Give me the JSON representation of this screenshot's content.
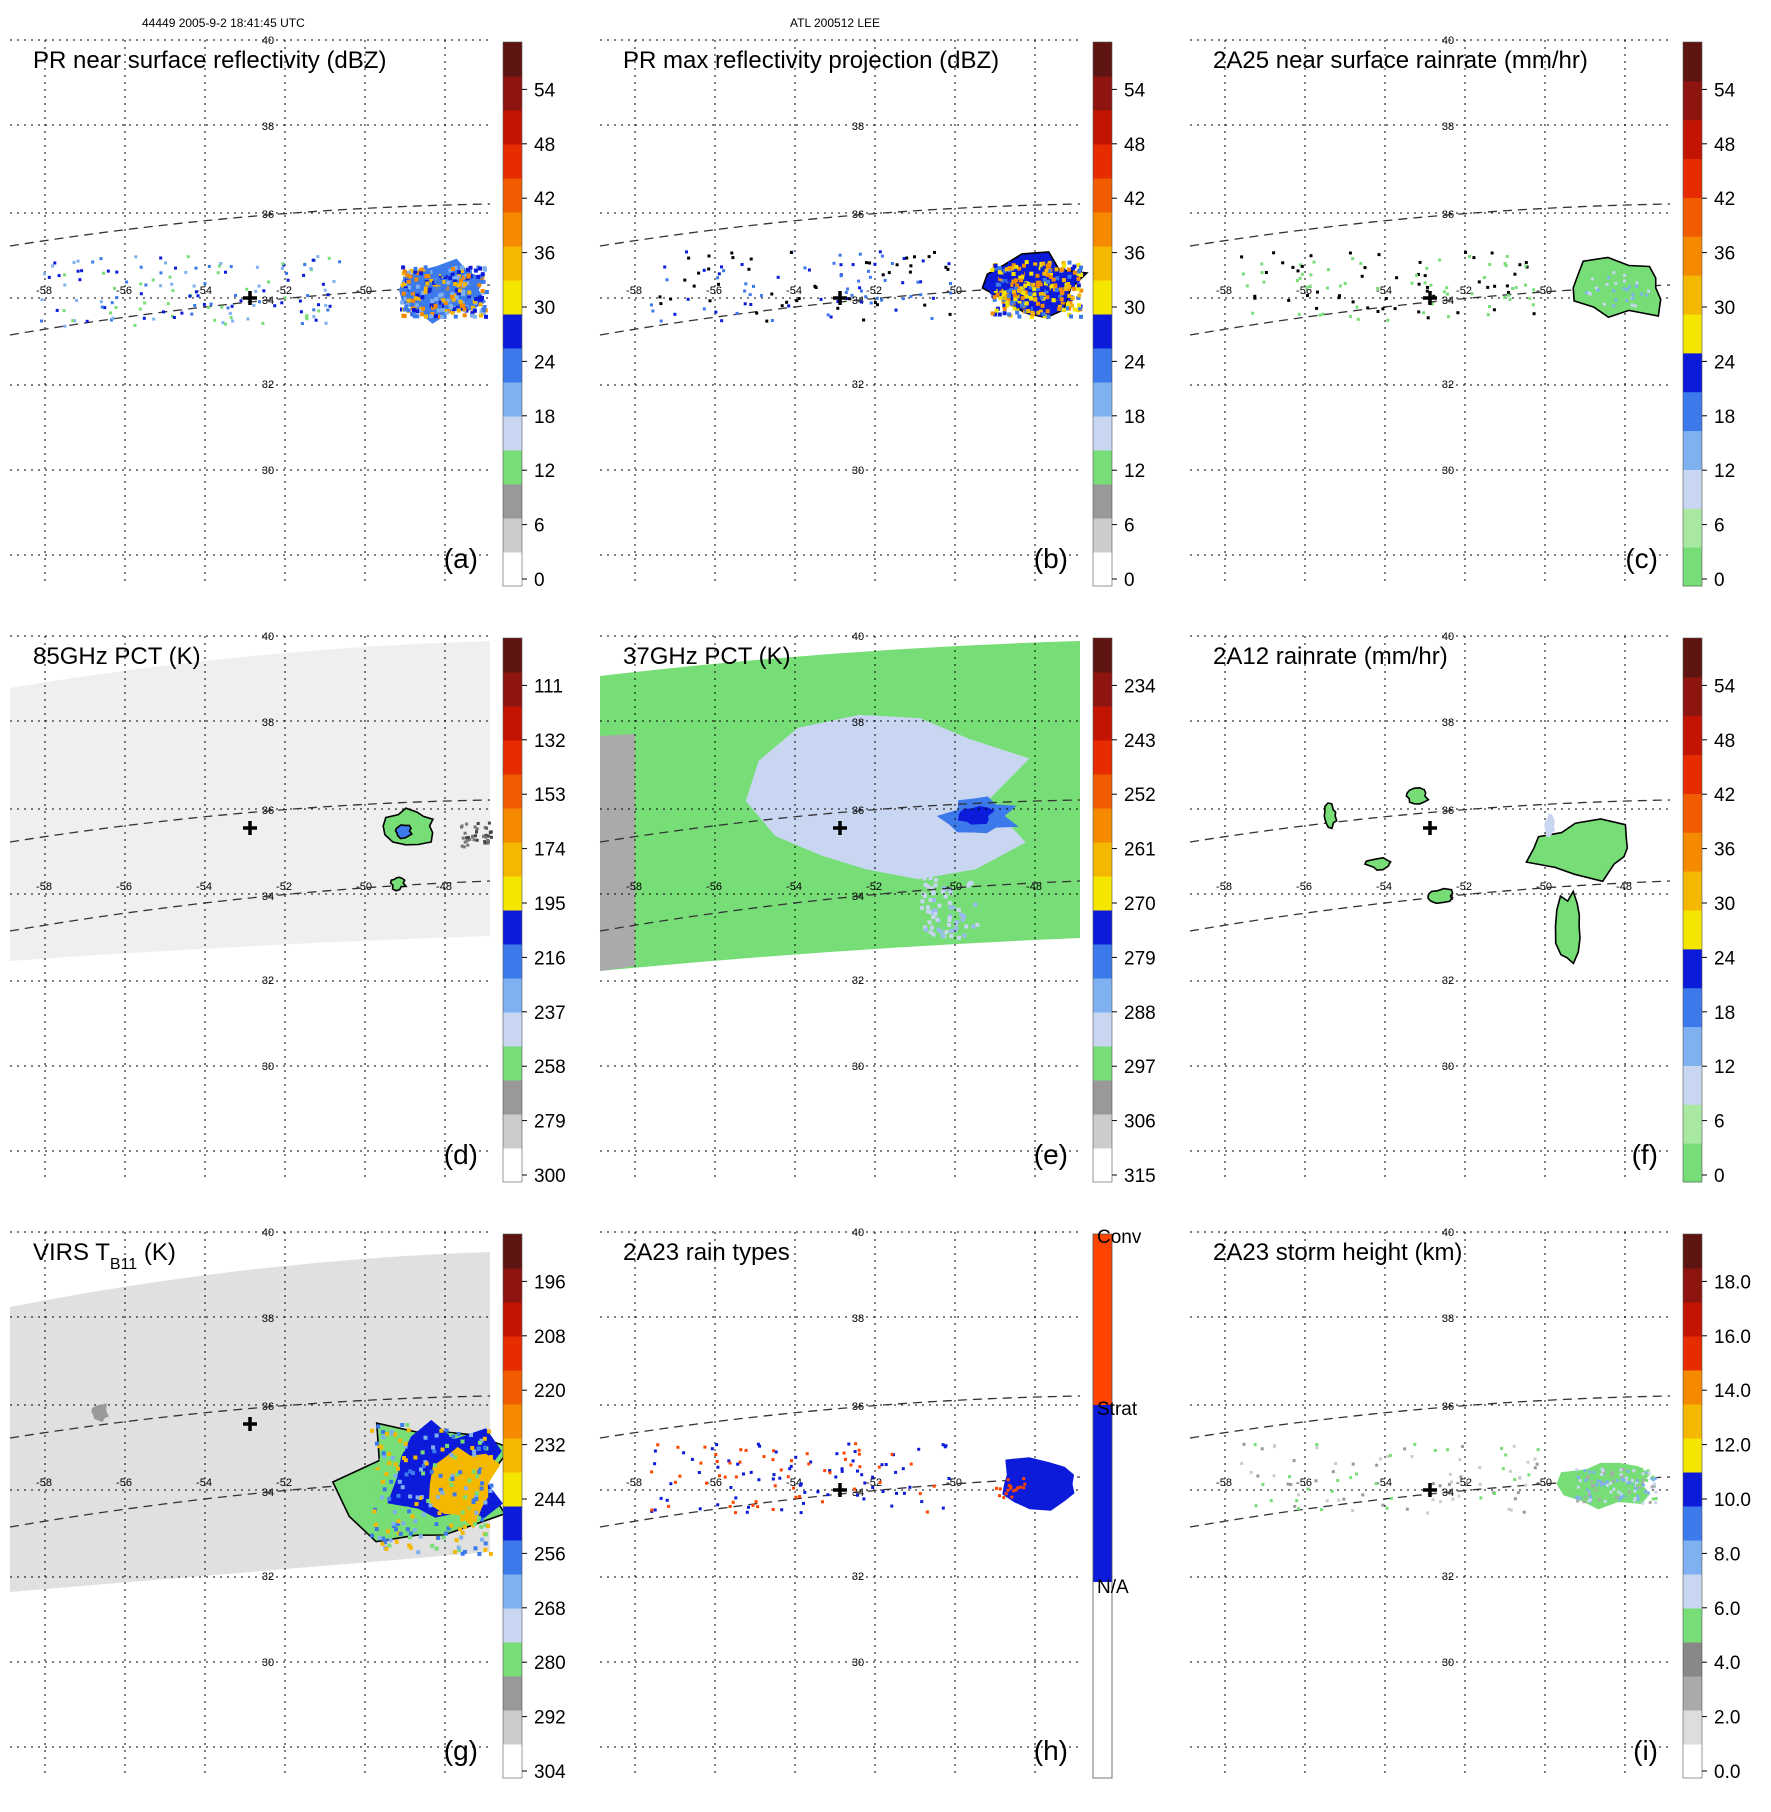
{
  "header": {
    "left": "44449 2005-9-2 18:41:45 UTC",
    "middle": "ATL 200512 LEE"
  },
  "chart_data": [
    {
      "type": "heatmap",
      "id": "a",
      "title": "PR near surface reflectivity (dBZ)",
      "panel_label": "(a)",
      "colorbar_ticks": [
        "54",
        "48",
        "42",
        "36",
        "30",
        "24",
        "18",
        "12",
        "6",
        "0"
      ],
      "lat_labels": [
        "40",
        "38",
        "36",
        "34",
        "32",
        "30"
      ],
      "lon_labels": [
        "-58",
        "-56",
        "-54",
        "-52",
        "-50",
        "-48"
      ]
    },
    {
      "type": "heatmap",
      "id": "b",
      "title": "PR max reflectivity projection (dBZ)",
      "panel_label": "(b)",
      "colorbar_ticks": [
        "54",
        "48",
        "42",
        "36",
        "30",
        "24",
        "18",
        "12",
        "6",
        "0"
      ],
      "lat_labels": [
        "38",
        "36",
        "34",
        "32",
        "30"
      ],
      "lon_labels": [
        "-58",
        "-56",
        "-54",
        "-52",
        "-50",
        "-48"
      ]
    },
    {
      "type": "heatmap",
      "id": "c",
      "title": "2A25 near surface rainrate (mm/hr)",
      "panel_label": "(c)",
      "colorbar_ticks": [
        "54",
        "48",
        "42",
        "36",
        "30",
        "24",
        "18",
        "12",
        "6",
        "0"
      ],
      "lat_labels": [
        "40",
        "38",
        "36",
        "34",
        "32",
        "30"
      ],
      "lon_labels": [
        "-58",
        "-56",
        "-54",
        "-52",
        "-50",
        "-48"
      ]
    },
    {
      "type": "heatmap",
      "id": "d",
      "title": "85GHz PCT (K)",
      "panel_label": "(d)",
      "colorbar_ticks": [
        "111",
        "132",
        "153",
        "174",
        "195",
        "216",
        "237",
        "258",
        "279",
        "300"
      ],
      "lat_labels": [
        "40",
        "38",
        "36",
        "34",
        "32",
        "30"
      ],
      "lon_labels": [
        "-58",
        "-56",
        "-54",
        "-52",
        "-50",
        "-48"
      ]
    },
    {
      "type": "heatmap",
      "id": "e",
      "title": "37GHz PCT (K)",
      "panel_label": "(e)",
      "colorbar_ticks": [
        "234",
        "243",
        "252",
        "261",
        "270",
        "279",
        "288",
        "297",
        "306",
        "315"
      ],
      "lat_labels": [
        "40",
        "38",
        "36",
        "34",
        "32",
        "30"
      ],
      "lon_labels": [
        "-58",
        "-56",
        "-54",
        "-52",
        "-50",
        "-48"
      ]
    },
    {
      "type": "heatmap",
      "id": "f",
      "title": "2A12 rainrate (mm/hr)",
      "panel_label": "(f)",
      "colorbar_ticks": [
        "54",
        "48",
        "42",
        "36",
        "30",
        "24",
        "18",
        "12",
        "6",
        "0"
      ],
      "lat_labels": [
        "40",
        "38",
        "36",
        "34",
        "32",
        "30"
      ],
      "lon_labels": [
        "-58",
        "-56",
        "-54",
        "-52",
        "-50",
        "-48"
      ]
    },
    {
      "type": "heatmap",
      "id": "g",
      "title": "VIRS T",
      "title_sub": "B11",
      "title_suffix": " (K)",
      "panel_label": "(g)",
      "colorbar_ticks": [
        "196",
        "208",
        "220",
        "232",
        "244",
        "256",
        "268",
        "280",
        "292",
        "304"
      ],
      "lat_labels": [
        "40",
        "38",
        "36",
        "34",
        "32",
        "30"
      ],
      "lon_labels": [
        "-58",
        "-56",
        "-54",
        "-52",
        "-50",
        "-48"
      ]
    },
    {
      "type": "heatmap",
      "id": "h",
      "title": "2A23 rain types",
      "panel_label": "(h)",
      "colorbar_ticks": [
        "Conv",
        "Strat",
        "N/A"
      ],
      "lat_labels": [
        "40",
        "38",
        "36",
        "34",
        "32",
        "30"
      ],
      "lon_labels": [
        "-58",
        "-56",
        "-54",
        "-52",
        "-50",
        "-48"
      ]
    },
    {
      "type": "heatmap",
      "id": "i",
      "title": "2A23 storm height (km)",
      "panel_label": "(i)",
      "colorbar_ticks": [
        "18.0",
        "16.0",
        "14.0",
        "12.0",
        "10.0",
        "8.0",
        "6.0",
        "4.0",
        "2.0",
        "0.0"
      ],
      "lat_labels": [
        "40",
        "38",
        "36",
        "34",
        "32",
        "30"
      ],
      "lon_labels": [
        "-58",
        "-56",
        "-54",
        "-52",
        "-50",
        "-48"
      ]
    }
  ],
  "colors": {
    "scale_standard": [
      "#ffffff",
      "#cccccc",
      "#999999",
      "#77dd77",
      "#c8d6f2",
      "#7fb0f0",
      "#3c79ea",
      "#0b1bd9",
      "#f5e600",
      "#f5b800",
      "#f58a00",
      "#f25c00",
      "#e62c00",
      "#c21400",
      "#8e1410",
      "#5e1410"
    ],
    "scale_rain": [
      "#77dd77",
      "#a8e8a0",
      "#c8d6f2",
      "#7fb0f0",
      "#3c79ea",
      "#0b1bd9",
      "#f5e600",
      "#f5b800",
      "#f58a00",
      "#f25c00",
      "#e62c00",
      "#c21400",
      "#8e1410",
      "#5e1410"
    ],
    "scale_height": [
      "#ffffff",
      "#dddddd",
      "#aaaaaa",
      "#888888",
      "#77dd77",
      "#c8d6f2",
      "#7fb0f0",
      "#3c79ea",
      "#0b1bd9",
      "#f5e600",
      "#f5b800",
      "#f58a00",
      "#e62c00",
      "#c21400",
      "#8e1410",
      "#5e1410"
    ],
    "swath_green": "#77dd77",
    "swath_gray": "#aaaaaa",
    "ice_blue": "#c8d6f2",
    "deep_blue": "#0b1bd9",
    "convective": "#ff4400",
    "stratiform": "#0b1bd9"
  }
}
